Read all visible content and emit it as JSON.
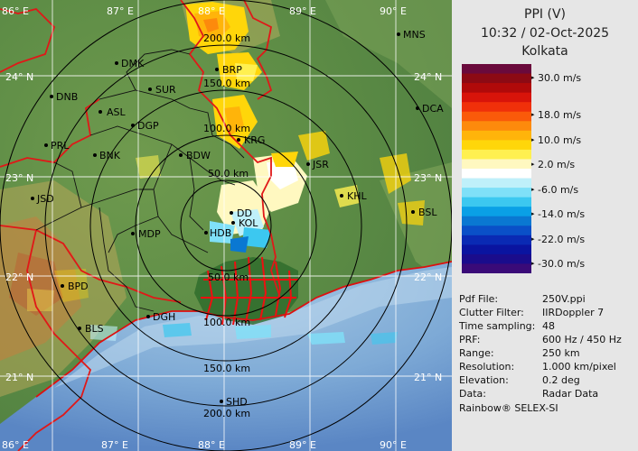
{
  "header": {
    "title": "PPI (V)",
    "datetime": "10:32 / 02-Oct-2025",
    "station": "Kolkata"
  },
  "colorbar": {
    "colors": [
      "#6a0a3c",
      "#8c0a14",
      "#b00a0a",
      "#d8140a",
      "#f0300a",
      "#fa5a0a",
      "#fd8a0c",
      "#ffb40a",
      "#ffd60a",
      "#fff050",
      "#fff8c0",
      "#ffffff",
      "#bff0fa",
      "#7fe0f8",
      "#3cc8f0",
      "#0aa0e6",
      "#0a78d2",
      "#0a50c8",
      "#0a2ab4",
      "#0a14a0",
      "#1a0c8c",
      "#3a0a78"
    ],
    "labels": [
      "30.0 m/s",
      "18.0 m/s",
      "10.0 m/s",
      "2.0 m/s",
      "-6.0 m/s",
      "-14.0 m/s",
      "-22.0 m/s",
      "-30.0 m/s"
    ]
  },
  "info": [
    {
      "key": "Pdf File:",
      "value": "250V.ppi"
    },
    {
      "key": "Clutter Filter:",
      "value": "IIRDoppler 7"
    },
    {
      "key": "Time sampling:",
      "value": "48"
    },
    {
      "key": "PRF:",
      "value": "600 Hz / 450 Hz"
    },
    {
      "key": "Range:",
      "value": "250 km"
    },
    {
      "key": "Resolution:",
      "value": "1.000 km/pixel"
    },
    {
      "key": "Elevation:",
      "value": "0.2 deg"
    },
    {
      "key": "Data:",
      "value": "Radar Data"
    }
  ],
  "footer": "Rainbow® SELEX-SI",
  "map": {
    "lon_labels_top": [
      "86° E",
      "87° E",
      "88° E",
      "89° E",
      "90° E"
    ],
    "lon_labels_bottom": [
      "86° E",
      "87° E",
      "88° E",
      "89° E",
      "90° E"
    ],
    "lat_labels_left": [
      "24° N",
      "23° N",
      "22° N",
      "21° N"
    ],
    "lat_labels_right": [
      "24° N",
      "23° N",
      "22° N",
      "21° N"
    ],
    "range_labels": [
      "50.0 km",
      "100.0 km",
      "150.0 km",
      "200.0 km",
      "50.0 km",
      "100.0 km",
      "150.0 km",
      "200.0 km"
    ],
    "cities": [
      {
        "name": "MNS"
      },
      {
        "name": "DMK"
      },
      {
        "name": "BRP"
      },
      {
        "name": "DNB"
      },
      {
        "name": "SUR"
      },
      {
        "name": "ASL"
      },
      {
        "name": "DGP"
      },
      {
        "name": "DCA"
      },
      {
        "name": "PRL"
      },
      {
        "name": "KRG"
      },
      {
        "name": "BNK"
      },
      {
        "name": "BDW"
      },
      {
        "name": "JSR"
      },
      {
        "name": "JSD"
      },
      {
        "name": "KHL"
      },
      {
        "name": "BSL"
      },
      {
        "name": "MDP"
      },
      {
        "name": "DD"
      },
      {
        "name": "KOL"
      },
      {
        "name": "HDB"
      },
      {
        "name": "BPD"
      },
      {
        "name": "DGH"
      },
      {
        "name": "BLS"
      },
      {
        "name": "SHD"
      }
    ]
  }
}
